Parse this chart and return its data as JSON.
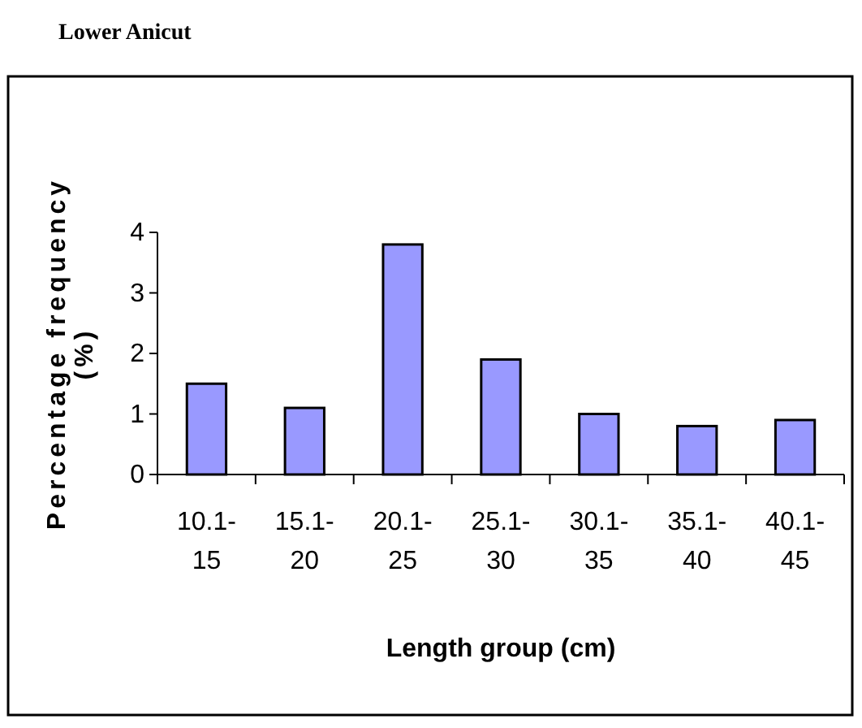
{
  "chart_data": {
    "type": "bar",
    "title": "Lower Anicut",
    "xlabel": "Length group (cm)",
    "ylabel": "Percentage frequency (%)",
    "categories": [
      "10.1-15",
      "15.1-20",
      "20.1-25",
      "25.1-30",
      "30.1-35",
      "35.1-40",
      "40.1-45"
    ],
    "values": [
      1.5,
      1.1,
      3.8,
      1.9,
      1.0,
      0.8,
      0.9
    ],
    "color": "#9999ff",
    "ylim": [
      0,
      4
    ],
    "yticks": [
      0,
      1,
      2,
      3,
      4
    ],
    "grid": false
  }
}
